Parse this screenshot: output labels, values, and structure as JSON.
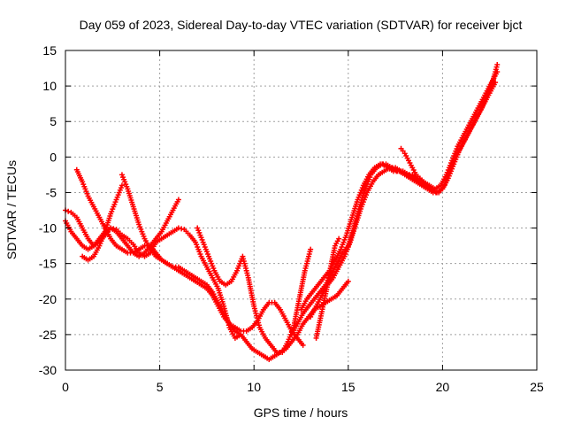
{
  "chart_data": {
    "type": "scatter",
    "title": "Day 059 of 2023, Sidereal Day-to-day VTEC variation (SDTVAR) for receiver bjct",
    "xlabel": "GPS time / hours",
    "ylabel": "SDTVAR / TECUs",
    "xlim": [
      0,
      25
    ],
    "ylim": [
      -30,
      15
    ],
    "xticks": [
      0,
      5,
      10,
      15,
      20,
      25
    ],
    "yticks": [
      -30,
      -25,
      -20,
      -15,
      -10,
      -5,
      0,
      5,
      10,
      15
    ],
    "grid": true,
    "marker": "+",
    "color": "#ff0000",
    "series": [
      {
        "x": [
          0.0,
          0.3,
          0.6,
          0.9,
          1.2,
          1.5,
          1.8,
          2.1,
          2.4,
          2.7,
          3.0,
          3.3,
          3.6,
          3.9,
          4.2,
          4.5,
          4.8,
          5.1,
          5.4,
          5.7,
          6.0,
          6.3,
          6.6,
          6.9,
          7.2,
          7.5,
          7.8,
          8.1,
          8.4,
          8.7,
          9.0,
          9.3
        ],
        "y": [
          -7.5,
          -7.8,
          -8.5,
          -10.0,
          -11.5,
          -12.5,
          -12.0,
          -11.0,
          -10.0,
          -10.2,
          -11.0,
          -11.5,
          -12.3,
          -13.5,
          -14.0,
          -13.5,
          -12.0,
          -11.5,
          -11.0,
          -10.5,
          -10.0,
          -10.2,
          -11.0,
          -12.0,
          -14.0,
          -15.5,
          -17.0,
          -18.5,
          -21.0,
          -24.0,
          -25.5,
          -25.0
        ]
      },
      {
        "x": [
          0.0,
          0.3,
          0.6,
          0.9,
          1.2,
          1.5,
          1.8,
          2.1,
          2.4,
          2.7,
          3.0,
          3.3,
          3.6,
          3.9,
          4.2,
          4.5,
          4.8,
          5.1,
          5.4,
          5.7,
          6.0
        ],
        "y": [
          -9.0,
          -10.5,
          -11.5,
          -12.5,
          -13.0,
          -12.5,
          -11.5,
          -10.5,
          -10.0,
          -10.5,
          -11.5,
          -12.5,
          -13.5,
          -14.0,
          -13.5,
          -12.5,
          -11.5,
          -10.5,
          -9.0,
          -7.5,
          -6.0
        ]
      },
      {
        "x": [
          0.6,
          0.9,
          1.2,
          1.5,
          1.8,
          2.1,
          2.4,
          2.7,
          3.0,
          3.3,
          3.6,
          3.9,
          4.2,
          4.5,
          4.8,
          5.1,
          5.4,
          5.7,
          6.0,
          6.3,
          6.6,
          6.9,
          7.2,
          7.5,
          7.8,
          8.1,
          8.4,
          8.7,
          9.0,
          9.3,
          9.6,
          9.9,
          10.2,
          10.5,
          10.8,
          11.1,
          11.4,
          11.7,
          12.0,
          12.3,
          12.6
        ],
        "y": [
          -1.8,
          -3.5,
          -5.5,
          -7.0,
          -8.5,
          -10.0,
          -11.5,
          -12.5,
          -13.0,
          -13.5,
          -13.5,
          -13.0,
          -12.5,
          -12.5,
          -13.5,
          -14.5,
          -15.0,
          -15.5,
          -16.0,
          -16.5,
          -17.0,
          -17.5,
          -18.0,
          -18.5,
          -19.5,
          -21.0,
          -22.5,
          -23.5,
          -24.0,
          -24.5,
          -24.5,
          -24.0,
          -23.0,
          -21.5,
          -20.5,
          -20.5,
          -21.5,
          -23.0,
          -24.5,
          -25.5,
          -26.5
        ]
      },
      {
        "x": [
          0.9,
          1.2,
          1.5,
          1.8,
          2.1,
          2.4,
          2.7,
          3.0
        ],
        "y": [
          -14.0,
          -14.5,
          -14.0,
          -12.5,
          -10.5,
          -8.0,
          -6.0,
          -4.0
        ]
      },
      {
        "x": [
          3.0,
          3.3,
          3.6,
          3.9,
          4.2,
          4.5,
          4.8,
          5.1,
          5.4,
          5.7,
          6.0,
          6.3,
          6.6,
          6.9,
          7.2,
          7.5,
          7.8,
          8.1,
          8.4,
          8.7,
          9.0,
          9.3,
          9.6,
          9.9,
          10.2,
          10.5,
          10.8,
          11.1,
          11.4,
          11.7,
          12.0,
          12.3,
          12.6,
          12.9,
          13.2,
          13.5,
          13.8,
          14.1,
          14.4,
          14.7,
          15.0
        ],
        "y": [
          -2.5,
          -4.5,
          -7.0,
          -9.5,
          -11.5,
          -13.0,
          -14.0,
          -14.5,
          -15.0,
          -15.5,
          -15.5,
          -16.0,
          -16.5,
          -17.0,
          -17.5,
          -18.0,
          -19.0,
          -20.5,
          -22.0,
          -23.5,
          -24.5,
          -25.0,
          -26.0,
          -27.0,
          -27.5,
          -28.0,
          -28.5,
          -28.0,
          -27.5,
          -27.0,
          -26.0,
          -25.0,
          -23.5,
          -22.5,
          -21.5,
          -21.0,
          -20.5,
          -20.0,
          -19.5,
          -18.5,
          -17.5
        ]
      },
      {
        "x": [
          7.0,
          7.3,
          7.6,
          7.9,
          8.2,
          8.5,
          8.8,
          9.1,
          9.4,
          9.7,
          10.0,
          10.3,
          10.6,
          10.9,
          11.2,
          11.5,
          11.8,
          12.1,
          12.4,
          12.7,
          13.0
        ],
        "y": [
          -10.0,
          -12.0,
          -14.0,
          -16.0,
          -17.5,
          -18.0,
          -17.5,
          -16.0,
          -14.0,
          -17.0,
          -21.0,
          -24.0,
          -25.5,
          -26.5,
          -27.5,
          -27.5,
          -26.0,
          -24.0,
          -20.0,
          -16.0,
          -13.0
        ]
      },
      {
        "x": [
          12.0,
          12.3,
          12.6,
          12.9,
          13.2,
          13.5,
          13.8,
          14.1,
          14.4,
          14.7,
          15.0,
          15.3,
          15.6,
          15.9,
          16.2,
          16.5,
          16.8,
          17.1,
          17.4,
          17.7,
          18.0,
          18.3,
          18.6,
          18.9,
          19.2,
          19.5,
          19.8,
          20.1,
          20.4,
          20.7,
          21.0,
          21.3,
          21.6,
          21.9,
          22.2,
          22.5,
          22.8
        ],
        "y": [
          -25.0,
          -23.5,
          -22.0,
          -21.0,
          -20.0,
          -19.0,
          -18.0,
          -16.5,
          -15.0,
          -13.5,
          -12.5,
          -10.0,
          -7.0,
          -4.5,
          -2.5,
          -1.5,
          -1.0,
          -1.5,
          -2.0,
          -2.0,
          -2.5,
          -3.0,
          -3.5,
          -4.0,
          -4.5,
          -5.0,
          -5.0,
          -4.0,
          -2.0,
          0.0,
          1.5,
          3.0,
          4.5,
          6.0,
          7.5,
          9.0,
          10.5
        ]
      },
      {
        "x": [
          13.0,
          13.3,
          13.6,
          13.9,
          14.2,
          14.5,
          14.8,
          15.1,
          15.4,
          15.7,
          16.0,
          16.3,
          16.6,
          16.9,
          17.2,
          17.5,
          17.8,
          18.1,
          18.4,
          18.7,
          19.0,
          19.3,
          19.6,
          19.9,
          20.2,
          20.5,
          20.8,
          21.1,
          21.4,
          21.7,
          22.0,
          22.3,
          22.6,
          22.9
        ],
        "y": [
          -22.5,
          -21.0,
          -19.5,
          -18.0,
          -17.0,
          -15.5,
          -14.0,
          -12.0,
          -9.5,
          -7.0,
          -5.0,
          -3.5,
          -2.5,
          -2.0,
          -1.5,
          -1.5,
          -2.0,
          -2.5,
          -2.5,
          -3.0,
          -3.5,
          -4.0,
          -4.5,
          -4.0,
          -2.5,
          -0.5,
          1.5,
          3.0,
          4.5,
          6.0,
          7.5,
          9.0,
          10.5,
          12.0
        ]
      },
      {
        "x": [
          12.5,
          12.8,
          13.1,
          13.4,
          13.7,
          14.0,
          14.3,
          14.6,
          14.9,
          15.2,
          15.5,
          15.8,
          16.1,
          16.4,
          16.7,
          17.0,
          17.3,
          17.6,
          17.9,
          18.2,
          18.5,
          18.8,
          19.1,
          19.4,
          19.7,
          20.0,
          20.3,
          20.6,
          20.9,
          21.2,
          21.5,
          21.8,
          22.1,
          22.4,
          22.7,
          22.9
        ],
        "y": [
          -21.5,
          -20.0,
          -19.0,
          -18.0,
          -17.0,
          -16.0,
          -14.5,
          -13.0,
          -11.0,
          -8.5,
          -6.0,
          -4.0,
          -2.5,
          -1.5,
          -1.0,
          -1.0,
          -1.5,
          -2.0,
          -2.0,
          -2.5,
          -3.0,
          -3.5,
          -4.0,
          -4.5,
          -5.0,
          -4.5,
          -3.0,
          -1.0,
          1.0,
          2.5,
          4.0,
          5.5,
          7.0,
          9.0,
          11.0,
          13.0
        ]
      },
      {
        "x": [
          13.3,
          13.5,
          13.7,
          13.9,
          14.1,
          14.3,
          14.5
        ],
        "y": [
          -25.5,
          -23.0,
          -20.5,
          -18.0,
          -15.0,
          -12.5,
          -11.5
        ]
      },
      {
        "x": [
          17.8,
          18.0,
          18.2,
          18.4,
          18.6,
          18.8,
          19.0,
          19.2
        ],
        "y": [
          1.2,
          0.5,
          -0.5,
          -1.5,
          -2.5,
          -3.0,
          -3.5,
          -4.0
        ]
      }
    ]
  }
}
